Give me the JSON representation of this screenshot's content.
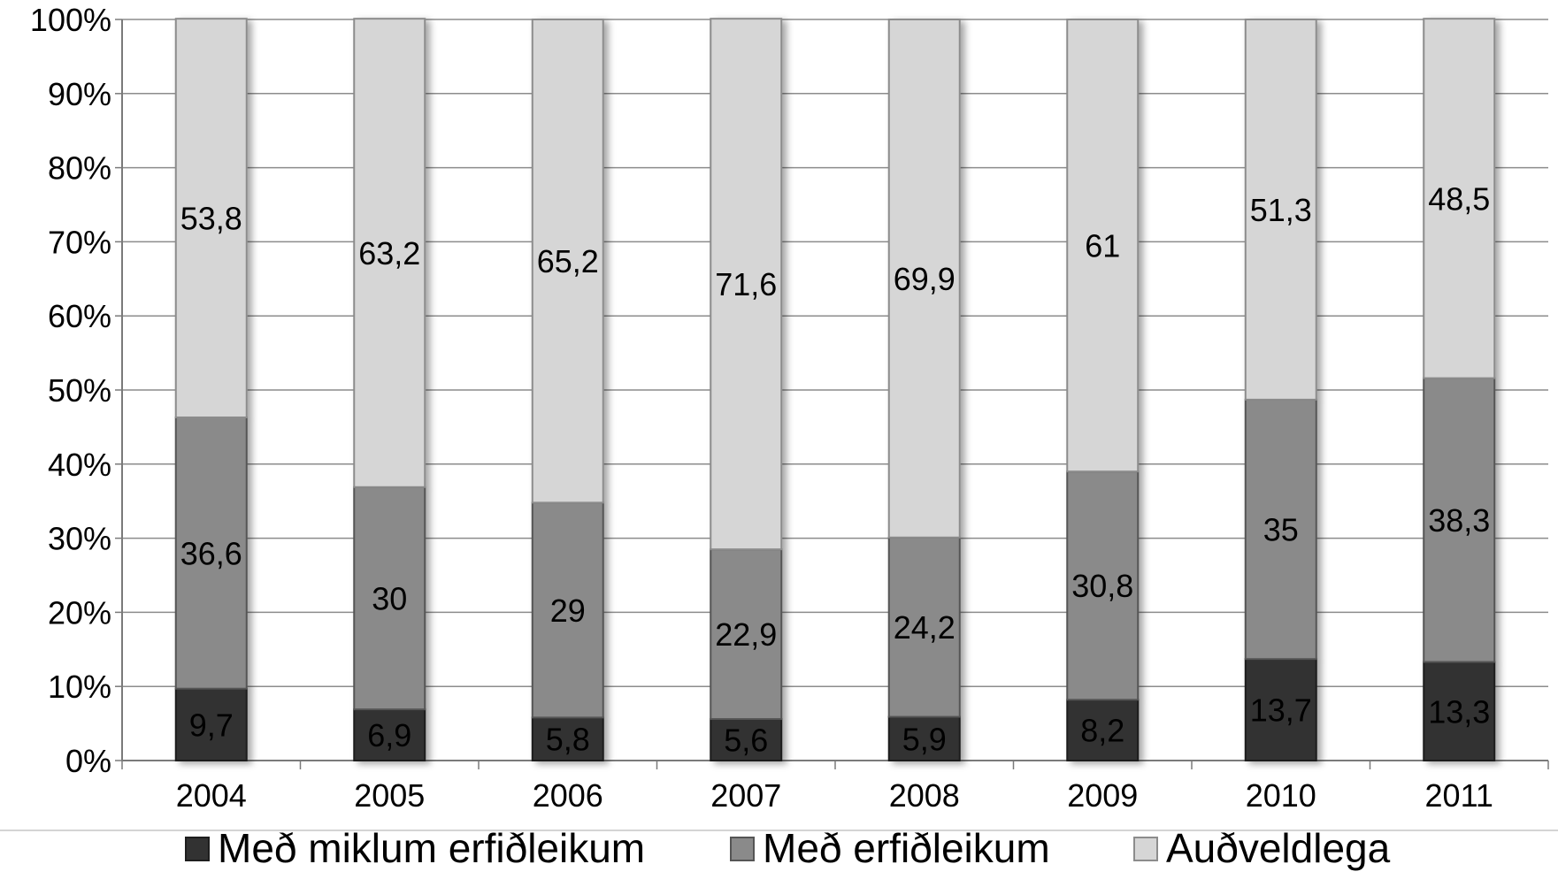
{
  "chart_data": {
    "type": "bar",
    "stacked": true,
    "percent_stacked": true,
    "categories": [
      "2004",
      "2005",
      "2006",
      "2007",
      "2008",
      "2009",
      "2010",
      "2011"
    ],
    "series": [
      {
        "name": "Með miklum erfiðleikum",
        "values": [
          9.7,
          6.9,
          5.8,
          5.6,
          5.9,
          8.2,
          13.7,
          13.3
        ],
        "labels": [
          "9,7",
          "6,9",
          "5,8",
          "5,6",
          "5,9",
          "8,2",
          "13,7",
          "13,3"
        ]
      },
      {
        "name": "Með erfiðleikum",
        "values": [
          36.6,
          30,
          29,
          22.9,
          24.2,
          30.8,
          35,
          38.3
        ],
        "labels": [
          "36,6",
          "30",
          "29",
          "22,9",
          "24,2",
          "30,8",
          "35",
          "38,3"
        ]
      },
      {
        "name": "Auðveldlega",
        "values": [
          53.8,
          63.2,
          65.2,
          71.6,
          69.9,
          61,
          51.3,
          48.5
        ],
        "labels": [
          "53,8",
          "63,2",
          "65,2",
          "71,6",
          "69,9",
          "61",
          "51,3",
          "48,5"
        ]
      }
    ],
    "yticks": [
      "0%",
      "10%",
      "20%",
      "30%",
      "40%",
      "50%",
      "60%",
      "70%",
      "80%",
      "90%",
      "100%"
    ],
    "ylim": [
      0,
      100
    ],
    "grid": true,
    "legend": "bottom",
    "title": "",
    "xlabel": "",
    "ylabel": ""
  },
  "colors": {
    "series": [
      "#323232",
      "#8a8a8a",
      "#d6d6d6"
    ],
    "series_stroke": [
      "#1e1e1e",
      "#555555",
      "#8c8c8c"
    ],
    "grid": "#8c8c8c",
    "axis": "#7a7a7a",
    "text": "#000000"
  }
}
